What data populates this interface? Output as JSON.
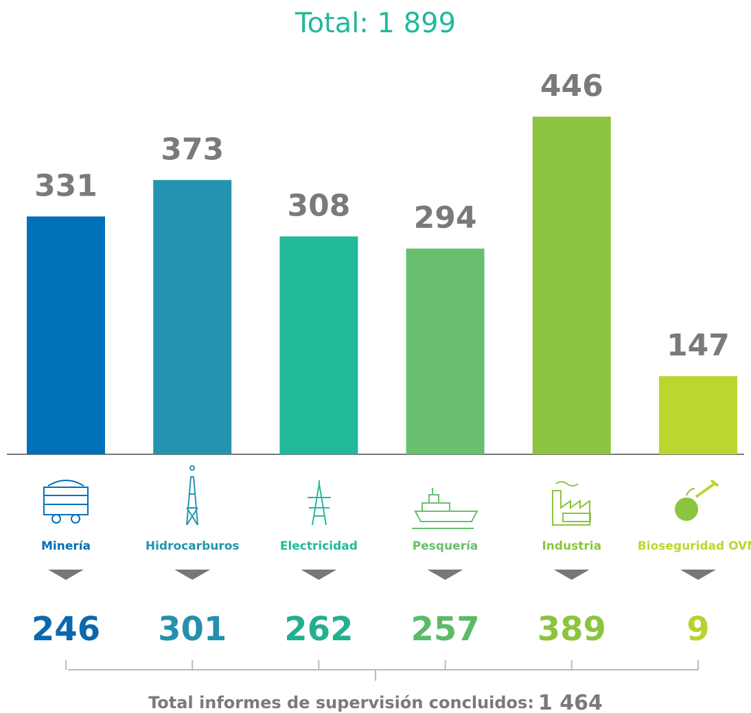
{
  "chart_data": {
    "type": "bar",
    "title": "Total: 1 899",
    "categories": [
      "Minería",
      "Hidrocarburos",
      "Electricidad",
      "Pesquería",
      "Industria",
      "Bioseguridad OVM"
    ],
    "values": [
      331,
      373,
      308,
      294,
      446,
      147
    ],
    "colors": [
      "#0070b8",
      "#2494b0",
      "#22b89a",
      "#68bf70",
      "#8cc43f",
      "#bcd630"
    ],
    "ylim": [
      57,
      446
    ],
    "completed": {
      "values": [
        246,
        301,
        262,
        257,
        389,
        9
      ],
      "colors": [
        "#0b68ae",
        "#2490ad",
        "#22b08f",
        "#5cba68",
        "#8cc43f",
        "#b8d230"
      ]
    },
    "footer": {
      "label": "Total informes de supervisión concluidos:",
      "total": "1 464"
    }
  }
}
